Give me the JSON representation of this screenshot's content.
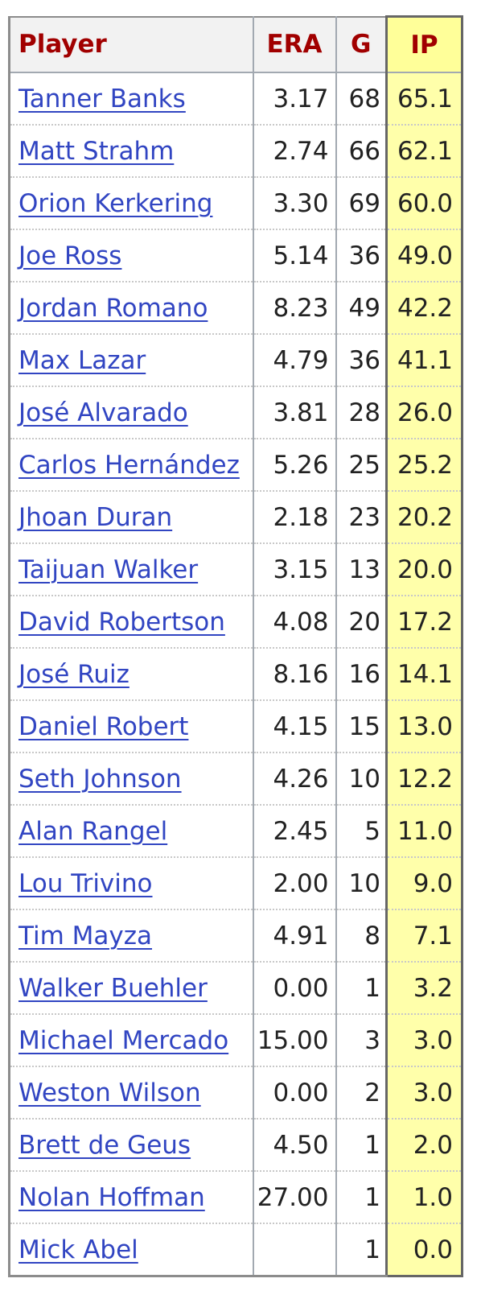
{
  "table": {
    "headers": {
      "player": "Player",
      "era": "ERA",
      "g": "G",
      "ip": "IP"
    },
    "rows": [
      {
        "player": "Tanner Banks",
        "era": "3.17",
        "g": "68",
        "ip": "65.1"
      },
      {
        "player": "Matt Strahm",
        "era": "2.74",
        "g": "66",
        "ip": "62.1"
      },
      {
        "player": "Orion Kerkering",
        "era": "3.30",
        "g": "69",
        "ip": "60.0"
      },
      {
        "player": "Joe Ross",
        "era": "5.14",
        "g": "36",
        "ip": "49.0"
      },
      {
        "player": "Jordan Romano",
        "era": "8.23",
        "g": "49",
        "ip": "42.2"
      },
      {
        "player": "Max Lazar",
        "era": "4.79",
        "g": "36",
        "ip": "41.1"
      },
      {
        "player": "José Alvarado",
        "era": "3.81",
        "g": "28",
        "ip": "26.0"
      },
      {
        "player": "Carlos Hernández",
        "era": "5.26",
        "g": "25",
        "ip": "25.2"
      },
      {
        "player": "Jhoan Duran",
        "era": "2.18",
        "g": "23",
        "ip": "20.2"
      },
      {
        "player": "Taijuan Walker",
        "era": "3.15",
        "g": "13",
        "ip": "20.0"
      },
      {
        "player": "David Robertson",
        "era": "4.08",
        "g": "20",
        "ip": "17.2"
      },
      {
        "player": "José Ruiz",
        "era": "8.16",
        "g": "16",
        "ip": "14.1"
      },
      {
        "player": "Daniel Robert",
        "era": "4.15",
        "g": "15",
        "ip": "13.0"
      },
      {
        "player": "Seth Johnson",
        "era": "4.26",
        "g": "10",
        "ip": "12.2"
      },
      {
        "player": "Alan Rangel",
        "era": "2.45",
        "g": "5",
        "ip": "11.0"
      },
      {
        "player": "Lou Trivino",
        "era": "2.00",
        "g": "10",
        "ip": "9.0"
      },
      {
        "player": "Tim Mayza",
        "era": "4.91",
        "g": "8",
        "ip": "7.1"
      },
      {
        "player": "Walker Buehler",
        "era": "0.00",
        "g": "1",
        "ip": "3.2"
      },
      {
        "player": "Michael Mercado",
        "era": "15.00",
        "g": "3",
        "ip": "3.0"
      },
      {
        "player": "Weston Wilson",
        "era": "0.00",
        "g": "2",
        "ip": "3.0"
      },
      {
        "player": "Brett de Geus",
        "era": "4.50",
        "g": "1",
        "ip": "2.0"
      },
      {
        "player": "Nolan Hoffman",
        "era": "27.00",
        "g": "1",
        "ip": "1.0"
      },
      {
        "player": "Mick Abel",
        "era": "",
        "g": "1",
        "ip": "0.0"
      }
    ]
  },
  "colors": {
    "header_text": "#a10000",
    "header_bg": "#f2f2f2",
    "link": "#3145c2",
    "sorted_column_bg": "#ffffaa"
  }
}
